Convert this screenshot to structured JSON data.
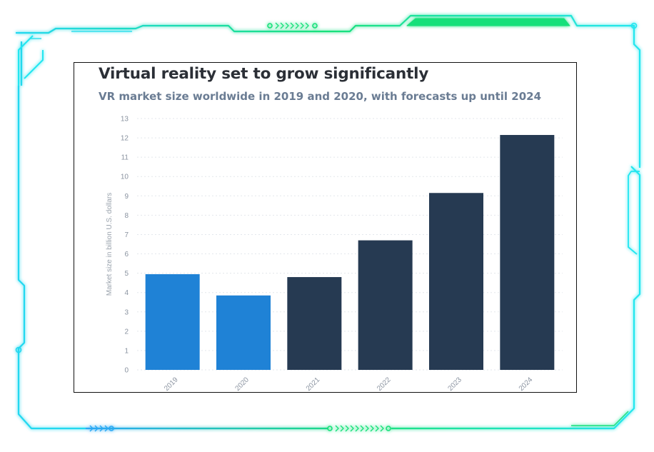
{
  "colors": {
    "frame_glow": "#22e6f0",
    "frame_accent": "#19e07a",
    "bar_actual": "#1f82d6",
    "bar_forecast": "#263a52",
    "title": "#2b2f36",
    "subtitle": "#6a7c93"
  },
  "chart_data": {
    "type": "bar",
    "title": "Virtual reality set to grow significantly",
    "subtitle": "VR market size worldwide in 2019 and 2020, with forecasts up until 2024",
    "ylabel": "Market size in billion U.S. dollars",
    "xlabel": "",
    "categories": [
      "2019",
      "2020",
      "2021",
      "2022",
      "2023",
      "2024"
    ],
    "values": [
      4.95,
      3.85,
      4.8,
      6.7,
      9.15,
      12.15
    ],
    "bar_colors": [
      "#1f82d6",
      "#1f82d6",
      "#263a52",
      "#263a52",
      "#263a52",
      "#263a52"
    ],
    "ylim": [
      0,
      13
    ],
    "yticks": [
      "0",
      "1",
      "2",
      "3",
      "4",
      "5",
      "6",
      "7",
      "8",
      "9",
      "10",
      "11",
      "12",
      "13"
    ],
    "grid": true,
    "legend": "none"
  }
}
